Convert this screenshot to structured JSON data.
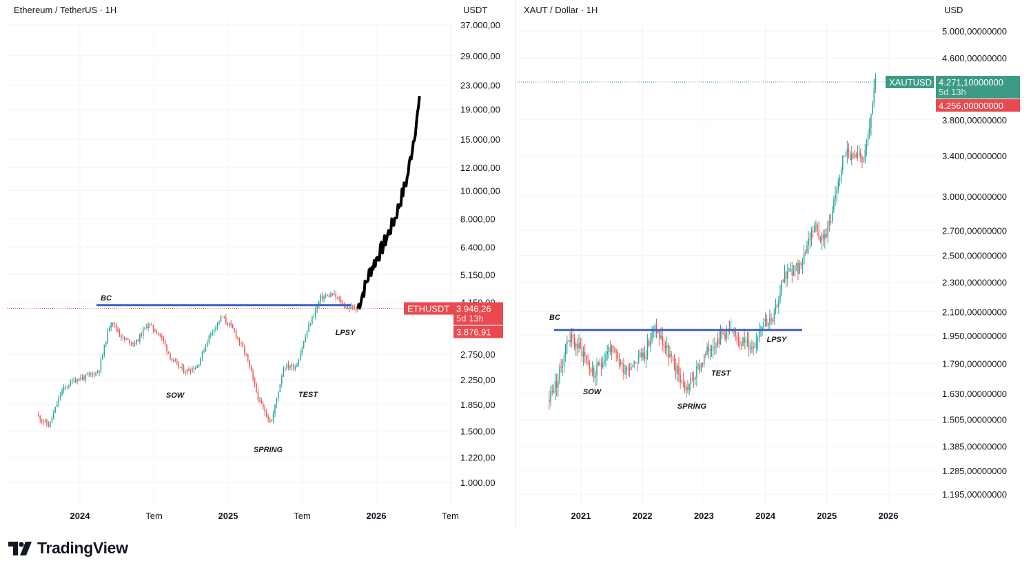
{
  "brand": "TradingView",
  "colors": {
    "up": "#26a69a",
    "down": "#ef5350",
    "line": "#3f5ecb",
    "projection": "#000000",
    "eth_tag": "#e84a4f",
    "xaut_tag": "#3d9a84"
  },
  "left": {
    "title": "Ethereum / TetherUS · 1H",
    "unit": "USDT",
    "symbol": "ETHUSDT",
    "last_price": "3.946,26",
    "countdown": "5d 13h",
    "prev_price": "3.876,91",
    "y_ticks": [
      "37.000,00",
      "29.000,00",
      "23.000,00",
      "19.000,00",
      "15.000,00",
      "12.000,00",
      "10.000,00",
      "8.000,00",
      "6.400,00",
      "5.150,00",
      "4.150,00",
      "2.750,00",
      "2.250,00",
      "1.850,00",
      "1.500,00",
      "1.220,00",
      "1.000,00"
    ],
    "x_ticks": [
      "2024",
      "Tem",
      "2025",
      "Tem",
      "2026",
      "Tem"
    ],
    "annotations": [
      "BC",
      "SOW",
      "SPRING",
      "TEST",
      "LPSY"
    ]
  },
  "right": {
    "title": "XAUT / Dollar · 1H",
    "unit": "USD",
    "symbol": "XAUTUSD",
    "last_price": "4.271,10000000",
    "countdown": "5d 13h",
    "prev_price": "4.256,00000000",
    "y_ticks": [
      "5.000,00000000",
      "4.600,00000000",
      "3.800,00000000",
      "3.400,00000000",
      "3.000,00000000",
      "2.700,00000000",
      "2.500,00000000",
      "2.300,00000000",
      "2.100,00000000",
      "1.950,00000000",
      "1.790,00000000",
      "1.630,00000000",
      "1.505,00000000",
      "1.385,00000000",
      "1.285,00000000",
      "1.195,00000000"
    ],
    "x_ticks": [
      "2021",
      "2022",
      "2023",
      "2024",
      "2025",
      "2026"
    ],
    "annotations": [
      "BC",
      "SOW",
      "SPRİNG",
      "TEST",
      "LPSY"
    ]
  },
  "chart_data": [
    {
      "type": "line",
      "title": "Ethereum / TetherUS · 1H",
      "ylabel": "USDT",
      "log_scale": true,
      "series": [
        {
          "name": "ETHUSDT",
          "x": [
            "2023-09",
            "2023-10",
            "2023-11",
            "2023-12",
            "2024-01",
            "2024-02",
            "2024-03",
            "2024-04",
            "2024-05",
            "2024-06",
            "2024-07",
            "2024-08",
            "2024-09",
            "2024-10",
            "2024-11",
            "2024-12",
            "2025-01",
            "2025-02",
            "2025-03",
            "2025-04",
            "2025-05",
            "2025-06",
            "2025-07",
            "2025-08",
            "2025-09",
            "2025-10",
            "2025-11"
          ],
          "values": [
            1700,
            1560,
            2050,
            2250,
            2300,
            2400,
            3600,
            3100,
            3000,
            3500,
            3200,
            2600,
            2400,
            2500,
            3200,
            3700,
            3300,
            2700,
            1900,
            1600,
            2500,
            2500,
            3400,
            4300,
            4400,
            4000,
            3946
          ]
        }
      ],
      "projection": {
        "x": [
          "2025-11",
          "2025-12",
          "2026-01",
          "2026-02",
          "2026-03",
          "2026-04"
        ],
        "values": [
          3946,
          5300,
          6400,
          8000,
          11000,
          20000
        ]
      },
      "resistance_level": 4050
    },
    {
      "type": "line",
      "title": "XAUT / Dollar · 1H",
      "ylabel": "USD",
      "log_scale": true,
      "series": [
        {
          "name": "XAUTUSD",
          "x": [
            "2020-06",
            "2020-08",
            "2020-10",
            "2021-01",
            "2021-03",
            "2021-06",
            "2021-09",
            "2022-01",
            "2022-03",
            "2022-06",
            "2022-09",
            "2022-11",
            "2023-02",
            "2023-05",
            "2023-08",
            "2023-10",
            "2023-12",
            "2024-02",
            "2024-04",
            "2024-07",
            "2024-10",
            "2024-12",
            "2025-02",
            "2025-04",
            "2025-06",
            "2025-08",
            "2025-10"
          ],
          "values": [
            1600,
            1700,
            1950,
            1850,
            1720,
            1880,
            1760,
            1850,
            2000,
            1820,
            1650,
            1740,
            1900,
            1980,
            1920,
            1880,
            2050,
            2030,
            2350,
            2400,
            2750,
            2620,
            2950,
            3450,
            3350,
            3400,
            4271
          ]
        }
      ],
      "resistance_level": 1985
    }
  ]
}
